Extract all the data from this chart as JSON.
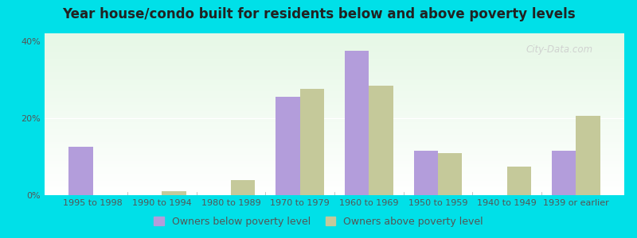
{
  "title": "Year house/condo built for residents below and above poverty levels",
  "categories": [
    "1995 to 1998",
    "1990 to 1994",
    "1980 to 1989",
    "1970 to 1979",
    "1960 to 1969",
    "1950 to 1959",
    "1940 to 1949",
    "1939 or earlier"
  ],
  "below_poverty": [
    12.5,
    0.0,
    0.0,
    25.5,
    37.5,
    11.5,
    0.0,
    11.5
  ],
  "above_poverty": [
    0.0,
    1.0,
    4.0,
    27.5,
    28.5,
    11.0,
    7.5,
    20.5
  ],
  "below_color": "#b39ddb",
  "above_color": "#c5c99a",
  "ylim": [
    0,
    42
  ],
  "yticks": [
    0,
    20,
    40
  ],
  "ytick_labels": [
    "0%",
    "20%",
    "40%"
  ],
  "outer_background": "#00e0e8",
  "bar_width": 0.35,
  "legend_below_label": "Owners below poverty level",
  "legend_above_label": "Owners above poverty level",
  "watermark": "City-Data.com",
  "title_fontsize": 12,
  "axis_fontsize": 8,
  "legend_fontsize": 9
}
